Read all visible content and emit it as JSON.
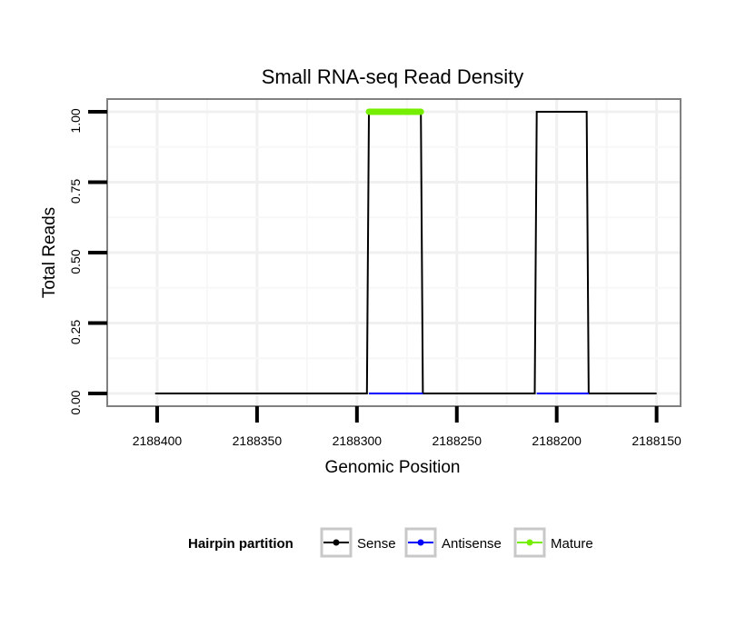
{
  "chart_data": {
    "type": "line",
    "title": "Small RNA-seq Read Density",
    "xlabel": "Genomic Position",
    "ylabel": "Total Reads",
    "x_reversed": true,
    "xlim": [
      2188425,
      2188138
    ],
    "ylim": [
      -0.045,
      1.045
    ],
    "x_ticks": [
      2188400,
      2188350,
      2188300,
      2188250,
      2188200,
      2188150
    ],
    "x_tick_labels": [
      "2188400",
      "2188350",
      "2188300",
      "2188250",
      "2188200",
      "2188150"
    ],
    "y_ticks": [
      0,
      0.25,
      0.5,
      0.75,
      1.0
    ],
    "y_tick_labels": [
      "0.00",
      "0.25",
      "0.50",
      "0.75",
      "1.00"
    ],
    "grid": true,
    "legend": {
      "title": "Hairpin partition",
      "position": "bottom",
      "entries": [
        {
          "name": "Sense",
          "color": "#000000"
        },
        {
          "name": "Antisense",
          "color": "#0000ff"
        },
        {
          "name": "Mature",
          "color": "#76ee00"
        }
      ]
    },
    "series": [
      {
        "name": "Sense",
        "color": "#000000",
        "x": [
          2188401,
          2188295,
          2188294,
          2188268,
          2188267,
          2188211,
          2188210,
          2188185,
          2188184,
          2188150
        ],
        "y": [
          0,
          0,
          1,
          1,
          0,
          0,
          1,
          1,
          0,
          0
        ]
      },
      {
        "name": "Antisense",
        "color": "#0000ff",
        "x": [
          2188294,
          2188267,
          2188210,
          2188184
        ],
        "y": [
          0,
          0,
          0,
          0
        ],
        "segments": [
          [
            0,
            1
          ],
          [
            2,
            3
          ]
        ]
      },
      {
        "name": "Mature",
        "color": "#76ee00",
        "x": [
          2188294,
          2188268
        ],
        "y": [
          1,
          1
        ]
      }
    ]
  }
}
